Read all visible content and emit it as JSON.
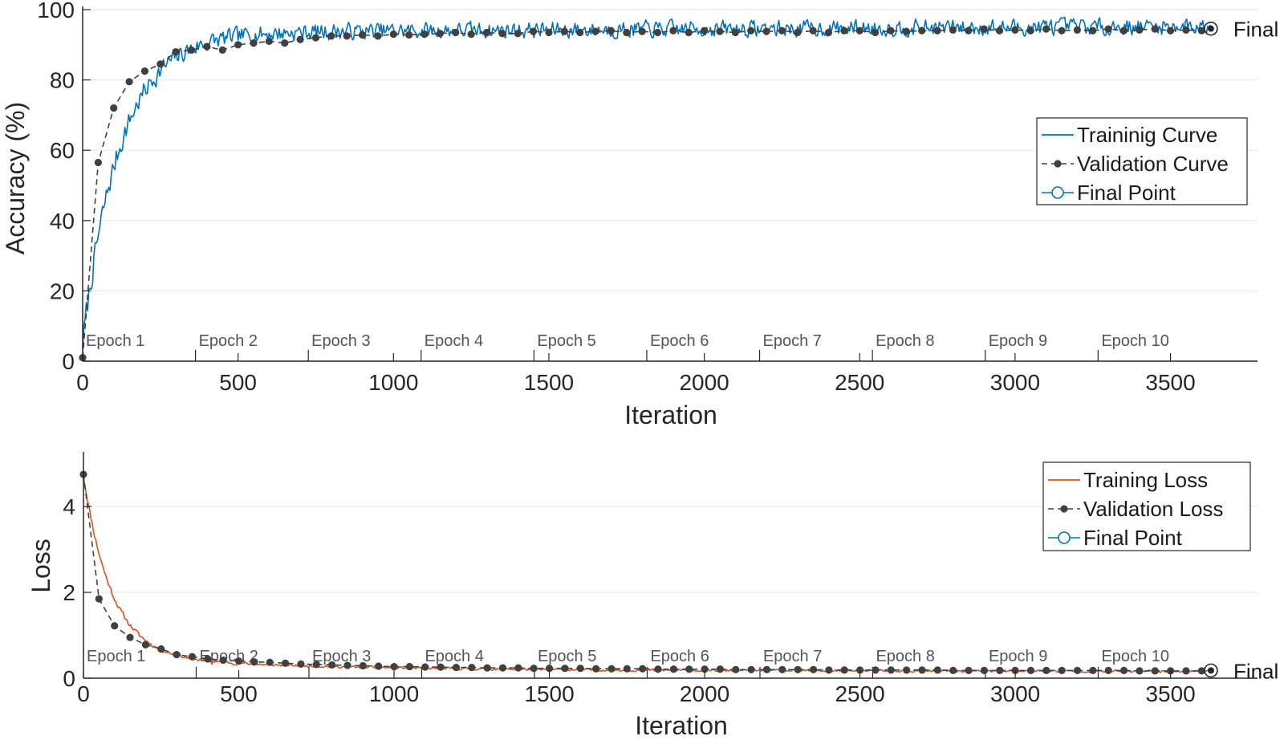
{
  "chart_data": [
    {
      "type": "line",
      "title": "",
      "xlabel": "Iteration",
      "ylabel": "Accuracy (%)",
      "xlim": [
        0,
        3780
      ],
      "ylim": [
        0,
        100
      ],
      "xticks": [
        0,
        500,
        1000,
        1500,
        2000,
        2500,
        3000,
        3500
      ],
      "yticks": [
        0,
        20,
        40,
        60,
        80,
        100
      ],
      "grid": "horizontal",
      "legend_position": "center-right",
      "epoch_labels": [
        "Epoch 1",
        "Epoch 2",
        "Epoch 3",
        "Epoch 4",
        "Epoch 5",
        "Epoch 6",
        "Epoch 7",
        "Epoch 8",
        "Epoch 9",
        "Epoch 10"
      ],
      "epoch_starts": [
        0,
        363,
        726,
        1089,
        1452,
        1815,
        2178,
        2541,
        2904,
        3267
      ],
      "final_label": "Final",
      "final_point": {
        "x": 3630,
        "y": 94.6
      },
      "series": [
        {
          "name": "Traininig Curve",
          "color": "#0072BD",
          "style": "solid",
          "shape": {
            "kind": "rise",
            "start": 5,
            "plateau": 93.5,
            "tau": 120,
            "late_gain": 1.8,
            "noise": 3.2,
            "seed": 7
          },
          "last_iteration": 3630
        },
        {
          "name": "Validation Curve",
          "color": "#404040",
          "style": "dashed-dot-markers",
          "x": [
            0,
            50,
            100,
            150,
            200,
            250,
            300,
            350,
            400,
            450,
            500,
            550,
            600,
            650,
            700,
            750,
            800,
            850,
            900,
            950,
            1000,
            1050,
            1100,
            1150,
            1200,
            1250,
            1300,
            1350,
            1400,
            1450,
            1500,
            1550,
            1600,
            1650,
            1700,
            1750,
            1800,
            1850,
            1900,
            1950,
            2000,
            2050,
            2100,
            2150,
            2200,
            2250,
            2300,
            2350,
            2400,
            2450,
            2500,
            2550,
            2600,
            2650,
            2700,
            2750,
            2800,
            2850,
            2900,
            2950,
            3000,
            3050,
            3100,
            3150,
            3200,
            3250,
            3300,
            3350,
            3400,
            3450,
            3500,
            3550,
            3600
          ],
          "y": [
            1.0,
            56.5,
            72.0,
            79.5,
            82.5,
            84.5,
            88.0,
            88.5,
            89.5,
            88.5,
            90.0,
            90.5,
            91.0,
            90.5,
            91.5,
            92.0,
            92.5,
            92.5,
            92.8,
            92.5,
            93.0,
            92.8,
            93.0,
            93.2,
            93.5,
            93.0,
            93.5,
            93.2,
            93.2,
            93.8,
            93.5,
            93.8,
            93.5,
            93.8,
            94.0,
            93.5,
            93.8,
            93.5,
            94.0,
            93.5,
            94.0,
            93.8,
            93.5,
            94.0,
            93.8,
            94.0,
            93.5,
            94.0,
            93.5,
            94.0,
            94.0,
            93.5,
            94.0,
            93.8,
            94.0,
            94.0,
            94.2,
            94.0,
            94.5,
            94.0,
            94.2,
            94.0,
            94.5,
            94.0,
            94.2,
            94.0,
            94.5,
            94.0,
            94.2,
            94.5,
            94.0,
            94.2,
            94.0
          ]
        },
        {
          "name": "Final Point",
          "color": "#0072BD",
          "style": "open-circle"
        }
      ]
    },
    {
      "type": "line",
      "title": "",
      "xlabel": "Iteration",
      "ylabel": "Loss",
      "xlim": [
        0,
        3780
      ],
      "ylim": [
        0,
        5.2
      ],
      "xticks": [
        0,
        500,
        1000,
        1500,
        2000,
        2500,
        3000,
        3500
      ],
      "yticks": [
        0,
        2,
        4
      ],
      "grid": "horizontal",
      "legend_position": "top-right",
      "epoch_labels": [
        "Epoch 1",
        "Epoch 2",
        "Epoch 3",
        "Epoch 4",
        "Epoch 5",
        "Epoch 6",
        "Epoch 7",
        "Epoch 8",
        "Epoch 9",
        "Epoch 10"
      ],
      "epoch_starts": [
        0,
        363,
        726,
        1089,
        1452,
        1815,
        2178,
        2541,
        2904,
        3267
      ],
      "final_label": "Final",
      "final_point": {
        "x": 3630,
        "y": 0.18
      },
      "series": [
        {
          "name": "Training Loss",
          "color": "#D95319",
          "style": "solid",
          "shape": {
            "kind": "decay",
            "start": 4.75,
            "floor": 0.16,
            "tau": 90,
            "tail": 0.35,
            "tail_tau": 700,
            "noise": 0.04,
            "seed": 11
          },
          "last_iteration": 3630
        },
        {
          "name": "Validation Loss",
          "color": "#404040",
          "style": "dashed-dot-markers",
          "x": [
            0,
            50,
            100,
            150,
            200,
            250,
            300,
            350,
            400,
            450,
            500,
            550,
            600,
            650,
            700,
            750,
            800,
            850,
            900,
            950,
            1000,
            1050,
            1100,
            1150,
            1200,
            1250,
            1300,
            1350,
            1400,
            1450,
            1500,
            1550,
            1600,
            1650,
            1700,
            1750,
            1800,
            1850,
            1900,
            1950,
            2000,
            2050,
            2100,
            2150,
            2200,
            2250,
            2300,
            2350,
            2400,
            2450,
            2500,
            2550,
            2600,
            2650,
            2700,
            2750,
            2800,
            2850,
            2900,
            2950,
            3000,
            3050,
            3100,
            3150,
            3200,
            3250,
            3300,
            3350,
            3400,
            3450,
            3500,
            3550,
            3600
          ],
          "y": [
            4.75,
            1.85,
            1.22,
            0.95,
            0.78,
            0.68,
            0.55,
            0.5,
            0.45,
            0.42,
            0.4,
            0.38,
            0.37,
            0.35,
            0.33,
            0.32,
            0.31,
            0.3,
            0.29,
            0.28,
            0.27,
            0.27,
            0.26,
            0.26,
            0.25,
            0.25,
            0.24,
            0.24,
            0.24,
            0.23,
            0.23,
            0.23,
            0.23,
            0.22,
            0.22,
            0.22,
            0.22,
            0.21,
            0.21,
            0.21,
            0.21,
            0.21,
            0.2,
            0.2,
            0.2,
            0.2,
            0.2,
            0.2,
            0.19,
            0.19,
            0.19,
            0.19,
            0.19,
            0.19,
            0.19,
            0.19,
            0.18,
            0.18,
            0.18,
            0.18,
            0.18,
            0.18,
            0.18,
            0.18,
            0.18,
            0.18,
            0.18,
            0.18,
            0.17,
            0.17,
            0.17,
            0.17,
            0.17
          ]
        },
        {
          "name": "Final Point",
          "color": "#0072BD",
          "style": "open-circle"
        }
      ]
    }
  ]
}
